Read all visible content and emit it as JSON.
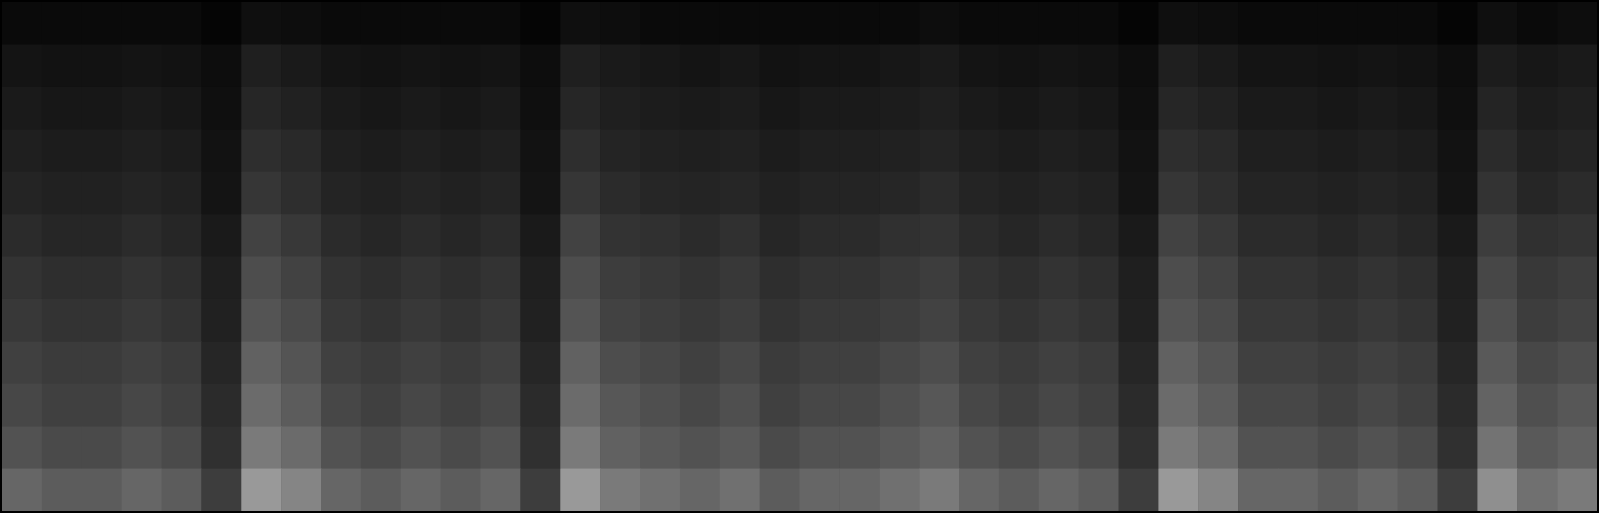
{
  "chart_data": {
    "type": "heatmap",
    "tick_labels": false,
    "zlim": [
      0,
      1
    ],
    "color": "#ffffff",
    "cells": [
      [
        0.04,
        0.04,
        0.04,
        0.04,
        0.04,
        0.02,
        0.06,
        0.05,
        0.04,
        0.04,
        0.04,
        0.04,
        0.04,
        0.02,
        0.06,
        0.05,
        0.04,
        0.04,
        0.04,
        0.04,
        0.04,
        0.04,
        0.04,
        0.05,
        0.04,
        0.04,
        0.04,
        0.04,
        0.02,
        0.06,
        0.05,
        0.04,
        0.04,
        0.04,
        0.04,
        0.04,
        0.02,
        0.06,
        0.04,
        0.05
      ],
      [
        0.08,
        0.07,
        0.07,
        0.08,
        0.07,
        0.05,
        0.12,
        0.1,
        0.08,
        0.07,
        0.08,
        0.07,
        0.08,
        0.05,
        0.12,
        0.1,
        0.09,
        0.08,
        0.09,
        0.07,
        0.08,
        0.08,
        0.09,
        0.1,
        0.08,
        0.07,
        0.08,
        0.07,
        0.05,
        0.12,
        0.1,
        0.08,
        0.08,
        0.07,
        0.08,
        0.07,
        0.05,
        0.11,
        0.09,
        0.1
      ],
      [
        0.1,
        0.09,
        0.09,
        0.1,
        0.09,
        0.06,
        0.15,
        0.13,
        0.1,
        0.09,
        0.1,
        0.09,
        0.1,
        0.06,
        0.15,
        0.12,
        0.11,
        0.1,
        0.11,
        0.09,
        0.1,
        0.1,
        0.11,
        0.12,
        0.1,
        0.09,
        0.1,
        0.09,
        0.06,
        0.15,
        0.13,
        0.1,
        0.1,
        0.09,
        0.1,
        0.09,
        0.06,
        0.14,
        0.11,
        0.12
      ],
      [
        0.12,
        0.11,
        0.11,
        0.12,
        0.11,
        0.07,
        0.18,
        0.16,
        0.12,
        0.11,
        0.12,
        0.11,
        0.12,
        0.07,
        0.18,
        0.14,
        0.13,
        0.12,
        0.13,
        0.11,
        0.12,
        0.12,
        0.13,
        0.14,
        0.12,
        0.11,
        0.12,
        0.11,
        0.07,
        0.18,
        0.16,
        0.12,
        0.12,
        0.11,
        0.12,
        0.11,
        0.07,
        0.17,
        0.13,
        0.14
      ],
      [
        0.14,
        0.13,
        0.13,
        0.14,
        0.13,
        0.08,
        0.21,
        0.18,
        0.14,
        0.13,
        0.14,
        0.13,
        0.14,
        0.08,
        0.21,
        0.17,
        0.15,
        0.14,
        0.15,
        0.13,
        0.14,
        0.14,
        0.15,
        0.17,
        0.14,
        0.13,
        0.14,
        0.13,
        0.08,
        0.21,
        0.18,
        0.14,
        0.14,
        0.13,
        0.14,
        0.13,
        0.08,
        0.2,
        0.15,
        0.17
      ],
      [
        0.17,
        0.15,
        0.15,
        0.17,
        0.15,
        0.1,
        0.26,
        0.22,
        0.17,
        0.15,
        0.17,
        0.15,
        0.17,
        0.1,
        0.26,
        0.2,
        0.19,
        0.17,
        0.19,
        0.15,
        0.17,
        0.17,
        0.19,
        0.2,
        0.17,
        0.15,
        0.17,
        0.15,
        0.1,
        0.26,
        0.22,
        0.17,
        0.17,
        0.15,
        0.17,
        0.15,
        0.1,
        0.24,
        0.19,
        0.2
      ],
      [
        0.2,
        0.18,
        0.18,
        0.2,
        0.18,
        0.12,
        0.3,
        0.26,
        0.2,
        0.18,
        0.2,
        0.18,
        0.2,
        0.12,
        0.3,
        0.24,
        0.22,
        0.2,
        0.22,
        0.18,
        0.2,
        0.2,
        0.22,
        0.24,
        0.2,
        0.18,
        0.2,
        0.18,
        0.12,
        0.3,
        0.26,
        0.2,
        0.2,
        0.18,
        0.2,
        0.18,
        0.12,
        0.28,
        0.22,
        0.24
      ],
      [
        0.22,
        0.2,
        0.2,
        0.22,
        0.2,
        0.13,
        0.33,
        0.29,
        0.22,
        0.2,
        0.22,
        0.2,
        0.22,
        0.13,
        0.33,
        0.26,
        0.24,
        0.22,
        0.24,
        0.2,
        0.22,
        0.22,
        0.24,
        0.26,
        0.22,
        0.2,
        0.22,
        0.2,
        0.13,
        0.33,
        0.29,
        0.22,
        0.22,
        0.2,
        0.22,
        0.2,
        0.13,
        0.31,
        0.24,
        0.26
      ],
      [
        0.25,
        0.23,
        0.23,
        0.25,
        0.23,
        0.15,
        0.38,
        0.33,
        0.25,
        0.23,
        0.25,
        0.23,
        0.25,
        0.15,
        0.38,
        0.3,
        0.28,
        0.25,
        0.28,
        0.23,
        0.25,
        0.25,
        0.28,
        0.3,
        0.25,
        0.23,
        0.25,
        0.23,
        0.15,
        0.38,
        0.33,
        0.25,
        0.25,
        0.23,
        0.25,
        0.23,
        0.15,
        0.35,
        0.28,
        0.3
      ],
      [
        0.28,
        0.25,
        0.25,
        0.28,
        0.25,
        0.17,
        0.42,
        0.36,
        0.28,
        0.25,
        0.28,
        0.25,
        0.28,
        0.17,
        0.42,
        0.34,
        0.31,
        0.28,
        0.31,
        0.25,
        0.28,
        0.28,
        0.31,
        0.34,
        0.28,
        0.25,
        0.28,
        0.25,
        0.17,
        0.42,
        0.36,
        0.28,
        0.28,
        0.25,
        0.28,
        0.25,
        0.17,
        0.39,
        0.31,
        0.34
      ],
      [
        0.32,
        0.29,
        0.29,
        0.32,
        0.29,
        0.19,
        0.48,
        0.42,
        0.32,
        0.29,
        0.32,
        0.29,
        0.32,
        0.19,
        0.48,
        0.38,
        0.35,
        0.32,
        0.35,
        0.29,
        0.32,
        0.32,
        0.35,
        0.38,
        0.32,
        0.29,
        0.32,
        0.29,
        0.19,
        0.48,
        0.42,
        0.32,
        0.32,
        0.29,
        0.32,
        0.29,
        0.19,
        0.45,
        0.35,
        0.38
      ],
      [
        0.4,
        0.36,
        0.36,
        0.4,
        0.36,
        0.24,
        0.6,
        0.52,
        0.4,
        0.36,
        0.4,
        0.36,
        0.4,
        0.24,
        0.6,
        0.48,
        0.44,
        0.4,
        0.44,
        0.36,
        0.4,
        0.4,
        0.44,
        0.48,
        0.4,
        0.36,
        0.4,
        0.36,
        0.24,
        0.6,
        0.52,
        0.4,
        0.4,
        0.36,
        0.4,
        0.36,
        0.24,
        0.56,
        0.44,
        0.48
      ]
    ]
  }
}
